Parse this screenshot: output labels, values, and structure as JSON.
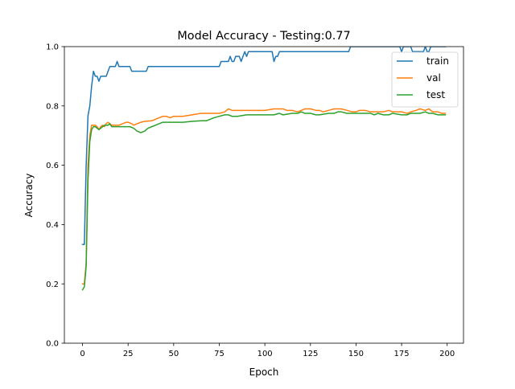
{
  "chart_data": {
    "type": "line",
    "title": "Model Accuracy - Testing:0.77",
    "xlabel": "Epoch",
    "ylabel": "Accuracy",
    "xlim": [
      -9.95,
      208.95
    ],
    "ylim": [
      0.0,
      1.0
    ],
    "xticks": [
      0,
      25,
      50,
      75,
      100,
      125,
      150,
      175,
      200
    ],
    "yticks": [
      0.0,
      0.2,
      0.4,
      0.6,
      0.8,
      1.0
    ],
    "xtick_labels": [
      "0",
      "25",
      "50",
      "75",
      "100",
      "125",
      "150",
      "175",
      "200"
    ],
    "ytick_labels": [
      "0.0",
      "0.2",
      "0.4",
      "0.6",
      "0.8",
      "1.0"
    ],
    "grid": false,
    "legend": "top-right",
    "series": [
      {
        "name": "train",
        "color": "#1f77b4",
        "points": [
          [
            0,
            0.333
          ],
          [
            1,
            0.333
          ],
          [
            2,
            0.6
          ],
          [
            3,
            0.767
          ],
          [
            4,
            0.8
          ],
          [
            5,
            0.867
          ],
          [
            6,
            0.917
          ],
          [
            7,
            0.9
          ],
          [
            8,
            0.9
          ],
          [
            9,
            0.883
          ],
          [
            10,
            0.9
          ],
          [
            11,
            0.9
          ],
          [
            12,
            0.9
          ],
          [
            13,
            0.9
          ],
          [
            14,
            0.917
          ],
          [
            15,
            0.933
          ],
          [
            16,
            0.933
          ],
          [
            17,
            0.933
          ],
          [
            18,
            0.933
          ],
          [
            19,
            0.95
          ],
          [
            20,
            0.933
          ],
          [
            21,
            0.933
          ],
          [
            22,
            0.933
          ],
          [
            23,
            0.933
          ],
          [
            24,
            0.933
          ],
          [
            25,
            0.933
          ],
          [
            26,
            0.933
          ],
          [
            27,
            0.917
          ],
          [
            28,
            0.917
          ],
          [
            29,
            0.917
          ],
          [
            30,
            0.917
          ],
          [
            35,
            0.917
          ],
          [
            36,
            0.933
          ],
          [
            40,
            0.933
          ],
          [
            50,
            0.933
          ],
          [
            60,
            0.933
          ],
          [
            70,
            0.933
          ],
          [
            75,
            0.933
          ],
          [
            76,
            0.95
          ],
          [
            80,
            0.95
          ],
          [
            81,
            0.967
          ],
          [
            82,
            0.95
          ],
          [
            83,
            0.95
          ],
          [
            84,
            0.967
          ],
          [
            86,
            0.967
          ],
          [
            87,
            0.95
          ],
          [
            88,
            0.967
          ],
          [
            89,
            0.983
          ],
          [
            90,
            0.967
          ],
          [
            91,
            0.983
          ],
          [
            100,
            0.983
          ],
          [
            104,
            0.983
          ],
          [
            105,
            0.95
          ],
          [
            106,
            0.967
          ],
          [
            107,
            0.967
          ],
          [
            108,
            0.983
          ],
          [
            120,
            0.983
          ],
          [
            130,
            0.983
          ],
          [
            140,
            0.983
          ],
          [
            146,
            0.983
          ],
          [
            147,
            1.0
          ],
          [
            148,
            1.0
          ],
          [
            155,
            1.0
          ],
          [
            156,
            1.0
          ],
          [
            160,
            1.0
          ],
          [
            170,
            1.0
          ],
          [
            174,
            1.0
          ],
          [
            175,
            0.983
          ],
          [
            176,
            1.0
          ],
          [
            180,
            1.0
          ],
          [
            181,
            0.983
          ],
          [
            186,
            0.983
          ],
          [
            187,
            0.983
          ],
          [
            188,
            1.0
          ],
          [
            189,
            0.983
          ],
          [
            190,
            0.983
          ],
          [
            191,
            1.0
          ],
          [
            199,
            1.0
          ]
        ]
      },
      {
        "name": "val",
        "color": "#ff7f0e",
        "points": [
          [
            0,
            0.2
          ],
          [
            1,
            0.2
          ],
          [
            2,
            0.27
          ],
          [
            3,
            0.6
          ],
          [
            4,
            0.7
          ],
          [
            5,
            0.735
          ],
          [
            6,
            0.735
          ],
          [
            7,
            0.735
          ],
          [
            8,
            0.73
          ],
          [
            9,
            0.72
          ],
          [
            10,
            0.73
          ],
          [
            11,
            0.735
          ],
          [
            12,
            0.73
          ],
          [
            13,
            0.74
          ],
          [
            14,
            0.745
          ],
          [
            15,
            0.74
          ],
          [
            16,
            0.735
          ],
          [
            17,
            0.735
          ],
          [
            18,
            0.735
          ],
          [
            20,
            0.735
          ],
          [
            22,
            0.74
          ],
          [
            24,
            0.745
          ],
          [
            25,
            0.745
          ],
          [
            27,
            0.74
          ],
          [
            28,
            0.735
          ],
          [
            30,
            0.74
          ],
          [
            32,
            0.745
          ],
          [
            34,
            0.748
          ],
          [
            38,
            0.75
          ],
          [
            40,
            0.755
          ],
          [
            42,
            0.76
          ],
          [
            44,
            0.765
          ],
          [
            46,
            0.765
          ],
          [
            48,
            0.76
          ],
          [
            50,
            0.765
          ],
          [
            55,
            0.765
          ],
          [
            60,
            0.77
          ],
          [
            65,
            0.775
          ],
          [
            70,
            0.775
          ],
          [
            75,
            0.775
          ],
          [
            78,
            0.78
          ],
          [
            80,
            0.79
          ],
          [
            82,
            0.785
          ],
          [
            85,
            0.785
          ],
          [
            90,
            0.785
          ],
          [
            95,
            0.785
          ],
          [
            100,
            0.785
          ],
          [
            105,
            0.79
          ],
          [
            110,
            0.79
          ],
          [
            112,
            0.785
          ],
          [
            115,
            0.785
          ],
          [
            118,
            0.78
          ],
          [
            120,
            0.785
          ],
          [
            122,
            0.79
          ],
          [
            125,
            0.79
          ],
          [
            128,
            0.785
          ],
          [
            130,
            0.785
          ],
          [
            132,
            0.78
          ],
          [
            135,
            0.785
          ],
          [
            138,
            0.79
          ],
          [
            140,
            0.79
          ],
          [
            142,
            0.79
          ],
          [
            145,
            0.785
          ],
          [
            148,
            0.78
          ],
          [
            150,
            0.78
          ],
          [
            152,
            0.785
          ],
          [
            155,
            0.785
          ],
          [
            158,
            0.78
          ],
          [
            160,
            0.78
          ],
          [
            165,
            0.78
          ],
          [
            168,
            0.785
          ],
          [
            170,
            0.78
          ],
          [
            175,
            0.78
          ],
          [
            178,
            0.775
          ],
          [
            180,
            0.78
          ],
          [
            183,
            0.785
          ],
          [
            185,
            0.79
          ],
          [
            188,
            0.785
          ],
          [
            190,
            0.79
          ],
          [
            192,
            0.78
          ],
          [
            195,
            0.78
          ],
          [
            197,
            0.775
          ],
          [
            199,
            0.775
          ]
        ]
      },
      {
        "name": "test",
        "color": "#2ca02c",
        "points": [
          [
            0,
            0.18
          ],
          [
            1,
            0.19
          ],
          [
            2,
            0.26
          ],
          [
            3,
            0.55
          ],
          [
            4,
            0.68
          ],
          [
            5,
            0.72
          ],
          [
            6,
            0.73
          ],
          [
            7,
            0.73
          ],
          [
            8,
            0.725
          ],
          [
            9,
            0.72
          ],
          [
            10,
            0.725
          ],
          [
            11,
            0.73
          ],
          [
            12,
            0.735
          ],
          [
            13,
            0.735
          ],
          [
            14,
            0.735
          ],
          [
            15,
            0.74
          ],
          [
            16,
            0.73
          ],
          [
            18,
            0.73
          ],
          [
            20,
            0.73
          ],
          [
            22,
            0.73
          ],
          [
            24,
            0.73
          ],
          [
            26,
            0.73
          ],
          [
            28,
            0.725
          ],
          [
            30,
            0.715
          ],
          [
            32,
            0.71
          ],
          [
            34,
            0.715
          ],
          [
            36,
            0.725
          ],
          [
            38,
            0.73
          ],
          [
            40,
            0.735
          ],
          [
            42,
            0.74
          ],
          [
            44,
            0.745
          ],
          [
            46,
            0.745
          ],
          [
            48,
            0.745
          ],
          [
            50,
            0.745
          ],
          [
            55,
            0.745
          ],
          [
            60,
            0.748
          ],
          [
            65,
            0.75
          ],
          [
            68,
            0.75
          ],
          [
            70,
            0.755
          ],
          [
            72,
            0.76
          ],
          [
            75,
            0.765
          ],
          [
            78,
            0.77
          ],
          [
            80,
            0.77
          ],
          [
            82,
            0.765
          ],
          [
            85,
            0.765
          ],
          [
            90,
            0.77
          ],
          [
            95,
            0.77
          ],
          [
            100,
            0.77
          ],
          [
            105,
            0.77
          ],
          [
            108,
            0.775
          ],
          [
            110,
            0.77
          ],
          [
            115,
            0.775
          ],
          [
            118,
            0.775
          ],
          [
            120,
            0.78
          ],
          [
            122,
            0.775
          ],
          [
            125,
            0.775
          ],
          [
            128,
            0.77
          ],
          [
            130,
            0.77
          ],
          [
            135,
            0.775
          ],
          [
            138,
            0.775
          ],
          [
            140,
            0.78
          ],
          [
            142,
            0.78
          ],
          [
            145,
            0.775
          ],
          [
            148,
            0.775
          ],
          [
            150,
            0.775
          ],
          [
            152,
            0.775
          ],
          [
            155,
            0.775
          ],
          [
            158,
            0.775
          ],
          [
            160,
            0.77
          ],
          [
            162,
            0.775
          ],
          [
            165,
            0.77
          ],
          [
            168,
            0.77
          ],
          [
            170,
            0.775
          ],
          [
            175,
            0.77
          ],
          [
            178,
            0.77
          ],
          [
            180,
            0.775
          ],
          [
            183,
            0.775
          ],
          [
            185,
            0.775
          ],
          [
            188,
            0.78
          ],
          [
            190,
            0.775
          ],
          [
            192,
            0.775
          ],
          [
            195,
            0.77
          ],
          [
            197,
            0.77
          ],
          [
            199,
            0.77
          ]
        ]
      }
    ]
  }
}
